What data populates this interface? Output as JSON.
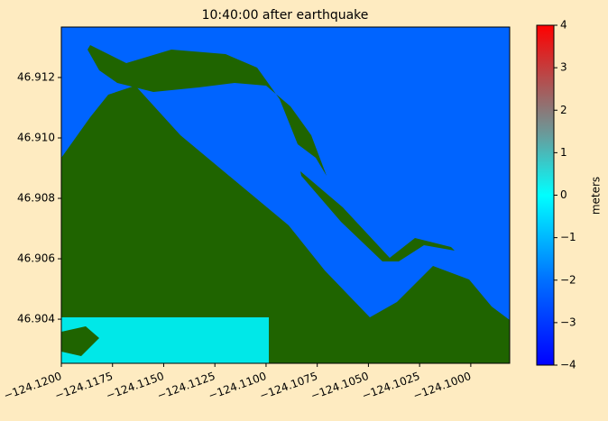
{
  "chart_data": {
    "type": "image",
    "title": "10:40:00 after earthquake",
    "xlim": [
      -124.12,
      -124.0981
    ],
    "ylim": [
      46.90254,
      46.91367
    ],
    "xticks": [
      {
        "value": -124.12,
        "label": "−124.1200"
      },
      {
        "value": -124.1175,
        "label": "−124.1175"
      },
      {
        "value": -124.115,
        "label": "−124.1150"
      },
      {
        "value": -124.1125,
        "label": "−124.1125"
      },
      {
        "value": -124.11,
        "label": "−124.1100"
      },
      {
        "value": -124.1075,
        "label": "−124.1075"
      },
      {
        "value": -124.105,
        "label": "−124.1050"
      },
      {
        "value": -124.1025,
        "label": "−124.1025"
      },
      {
        "value": -124.1,
        "label": "−124.1000"
      }
    ],
    "yticks": [
      46.904,
      46.906,
      46.908,
      {
        "value": 46.91,
        "label": "46.910"
      },
      46.912
    ],
    "colorbar": {
      "label": "meters",
      "lim": [
        -4,
        4
      ],
      "ticks": [
        {
          "value": -4,
          "label": "−4"
        },
        {
          "value": -3,
          "label": "−3"
        },
        {
          "value": -2,
          "label": "−2"
        },
        {
          "value": -1,
          "label": "−1"
        },
        0,
        1,
        2,
        3,
        4
      ]
    }
  }
}
